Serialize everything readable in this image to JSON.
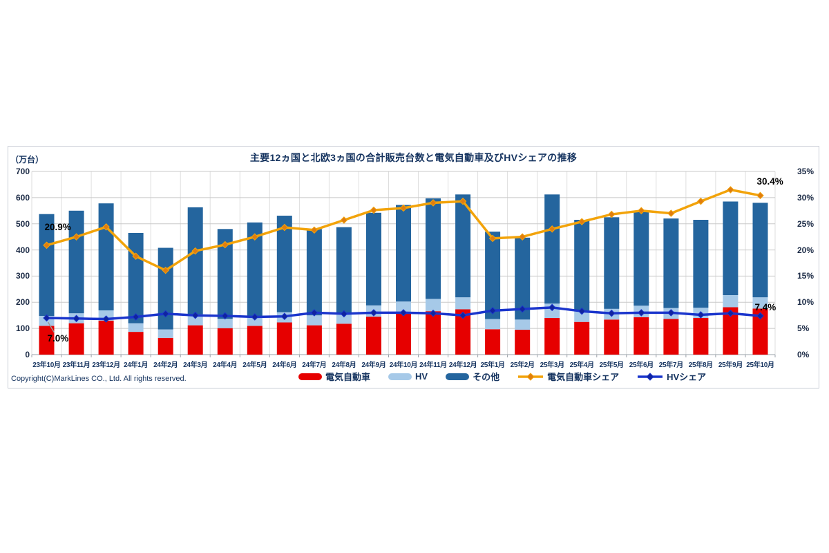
{
  "chart_data": {
    "type": "combo",
    "title": "主要12ヵ国と北欧3ヵ国の合計販売台数と電気自動車及びHVシェアの推移",
    "unit_left": "（万台）",
    "copyright": "Copyright(C)MarkLines CO., Ltd. All rights reserved.",
    "categories": [
      "23年10月",
      "23年11月",
      "23年12月",
      "24年1月",
      "24年2月",
      "24年3月",
      "24年4月",
      "24年5月",
      "24年6月",
      "24年7月",
      "24年8月",
      "24年9月",
      "24年10月",
      "24年11月",
      "24年12月",
      "25年1月",
      "25年2月",
      "25年3月",
      "25年4月",
      "25年5月",
      "25年6月",
      "25年7月",
      "25年8月",
      "25年9月",
      "25年10月"
    ],
    "bar_series": [
      {
        "name": "電気自動車",
        "color": "#e60000",
        "values": [
          110,
          120,
          130,
          87,
          64,
          112,
          101,
          110,
          123,
          112,
          118,
          145,
          157,
          166,
          173,
          97,
          95,
          140,
          125,
          134,
          143,
          136,
          140,
          181,
          176
        ]
      },
      {
        "name": "HV",
        "color": "#a6c9e8",
        "values": [
          38,
          38,
          39,
          33,
          32,
          42,
          36,
          36,
          39,
          38,
          38,
          43,
          46,
          47,
          46,
          39,
          39,
          55,
          43,
          41,
          44,
          42,
          39,
          46,
          43
        ]
      },
      {
        "name": "その他",
        "color": "#24659e",
        "values": [
          389,
          392,
          409,
          345,
          312,
          409,
          343,
          359,
          369,
          330,
          331,
          354,
          369,
          384,
          393,
          334,
          313,
          417,
          347,
          350,
          358,
          342,
          336,
          358,
          361
        ]
      }
    ],
    "line_series": [
      {
        "name": "電気自動車シェア",
        "color": "#f2a30a",
        "marker_color": "#e07d10",
        "axis": "right",
        "values": [
          20.9,
          22.5,
          24.4,
          18.8,
          16.1,
          19.8,
          21.0,
          22.5,
          24.3,
          23.8,
          25.7,
          27.6,
          28.0,
          29.0,
          29.3,
          22.2,
          22.5,
          24.0,
          25.4,
          26.8,
          27.5,
          27.0,
          29.3,
          31.5,
          30.4
        ]
      },
      {
        "name": "HVシェア",
        "color": "#1a35cc",
        "marker_color": "#10249e",
        "axis": "right",
        "values": [
          7.0,
          6.9,
          6.8,
          7.2,
          7.8,
          7.5,
          7.4,
          7.2,
          7.3,
          8.0,
          7.8,
          8.0,
          8.0,
          7.9,
          7.5,
          8.4,
          8.7,
          9.0,
          8.3,
          7.9,
          8.0,
          8.0,
          7.6,
          7.9,
          7.4
        ]
      }
    ],
    "left_axis": {
      "min": 0,
      "max": 700,
      "step": 100
    },
    "right_axis": {
      "min": 0,
      "max": 35,
      "step": 5,
      "suffix": "%"
    },
    "grid": true,
    "legend_position": "bottom",
    "annotations": [
      {
        "text": "20.9%",
        "series": 0,
        "index": 0,
        "leader": false
      },
      {
        "text": "7.0%",
        "series": 1,
        "index": 0,
        "leader": true
      },
      {
        "text": "30.4%",
        "series": 0,
        "index": 24,
        "leader": false
      },
      {
        "text": "7.4%",
        "series": 1,
        "index": 24,
        "leader": false
      }
    ]
  }
}
